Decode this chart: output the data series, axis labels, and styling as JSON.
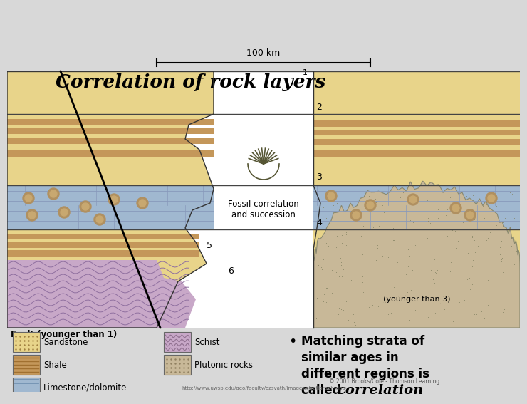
{
  "title": "Correlation of rock layers",
  "scale_bar_text": "100 km",
  "fault_label": "Fault (younger than 1)",
  "fossil_label": "Fossil correlation\nand succession",
  "younger_label": "(younger than 3)",
  "copyright_text": "© 2001 Brooks/Cole - Thomson Learning",
  "url_text": "http://www.uwsp.edu/geo/faculty/ozsvath/images/stratigraphy.jpg",
  "bullet_lines": [
    "Matching strata of",
    "similar ages in",
    "different regions is",
    "called "
  ],
  "sandstone_color": "#e8d48a",
  "shale_color": "#c4975a",
  "limestone_color": "#a0b8d0",
  "schist_color": "#c8a8c8",
  "plutonic_color": "#c8b898",
  "white": "#ffffff",
  "bg_color": "#d8d8d8",
  "diagram_bg": "#ffffff"
}
